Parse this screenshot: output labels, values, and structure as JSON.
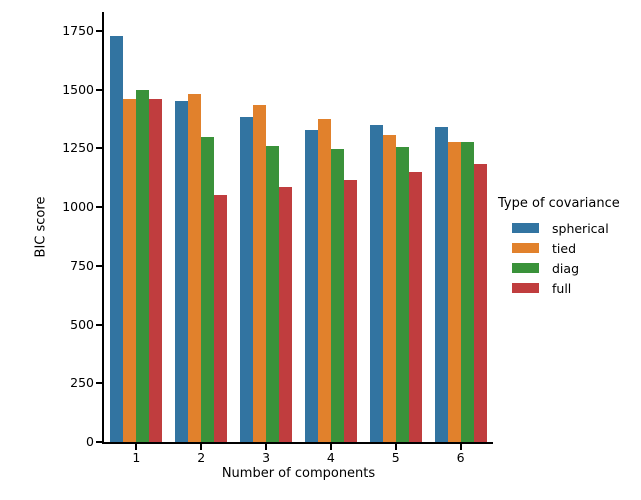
{
  "chart_data": {
    "type": "bar",
    "title": "",
    "xlabel": "Number of components",
    "ylabel": "BIC score",
    "categories": [
      "1",
      "2",
      "3",
      "4",
      "5",
      "6"
    ],
    "series": [
      {
        "name": "spherical",
        "color": "#3274a1",
        "values": [
          1730,
          1450,
          1385,
          1330,
          1350,
          1340
        ]
      },
      {
        "name": "tied",
        "color": "#e1812c",
        "values": [
          1460,
          1480,
          1435,
          1375,
          1305,
          1275
        ]
      },
      {
        "name": "diag",
        "color": "#3a923a",
        "values": [
          1500,
          1300,
          1260,
          1245,
          1255,
          1275
        ]
      },
      {
        "name": "full",
        "color": "#c03d3e",
        "values": [
          1460,
          1050,
          1085,
          1115,
          1150,
          1185
        ]
      }
    ],
    "ylim": [
      0,
      1830
    ],
    "yticks": [
      0,
      250,
      500,
      750,
      1000,
      1250,
      1500,
      1750
    ],
    "grid": "off",
    "legend": {
      "title": "Type of covariance",
      "position": "right-outside"
    }
  },
  "style_colors": {
    "background": "#ffffff",
    "axis": "#000000",
    "text": "#000000"
  }
}
